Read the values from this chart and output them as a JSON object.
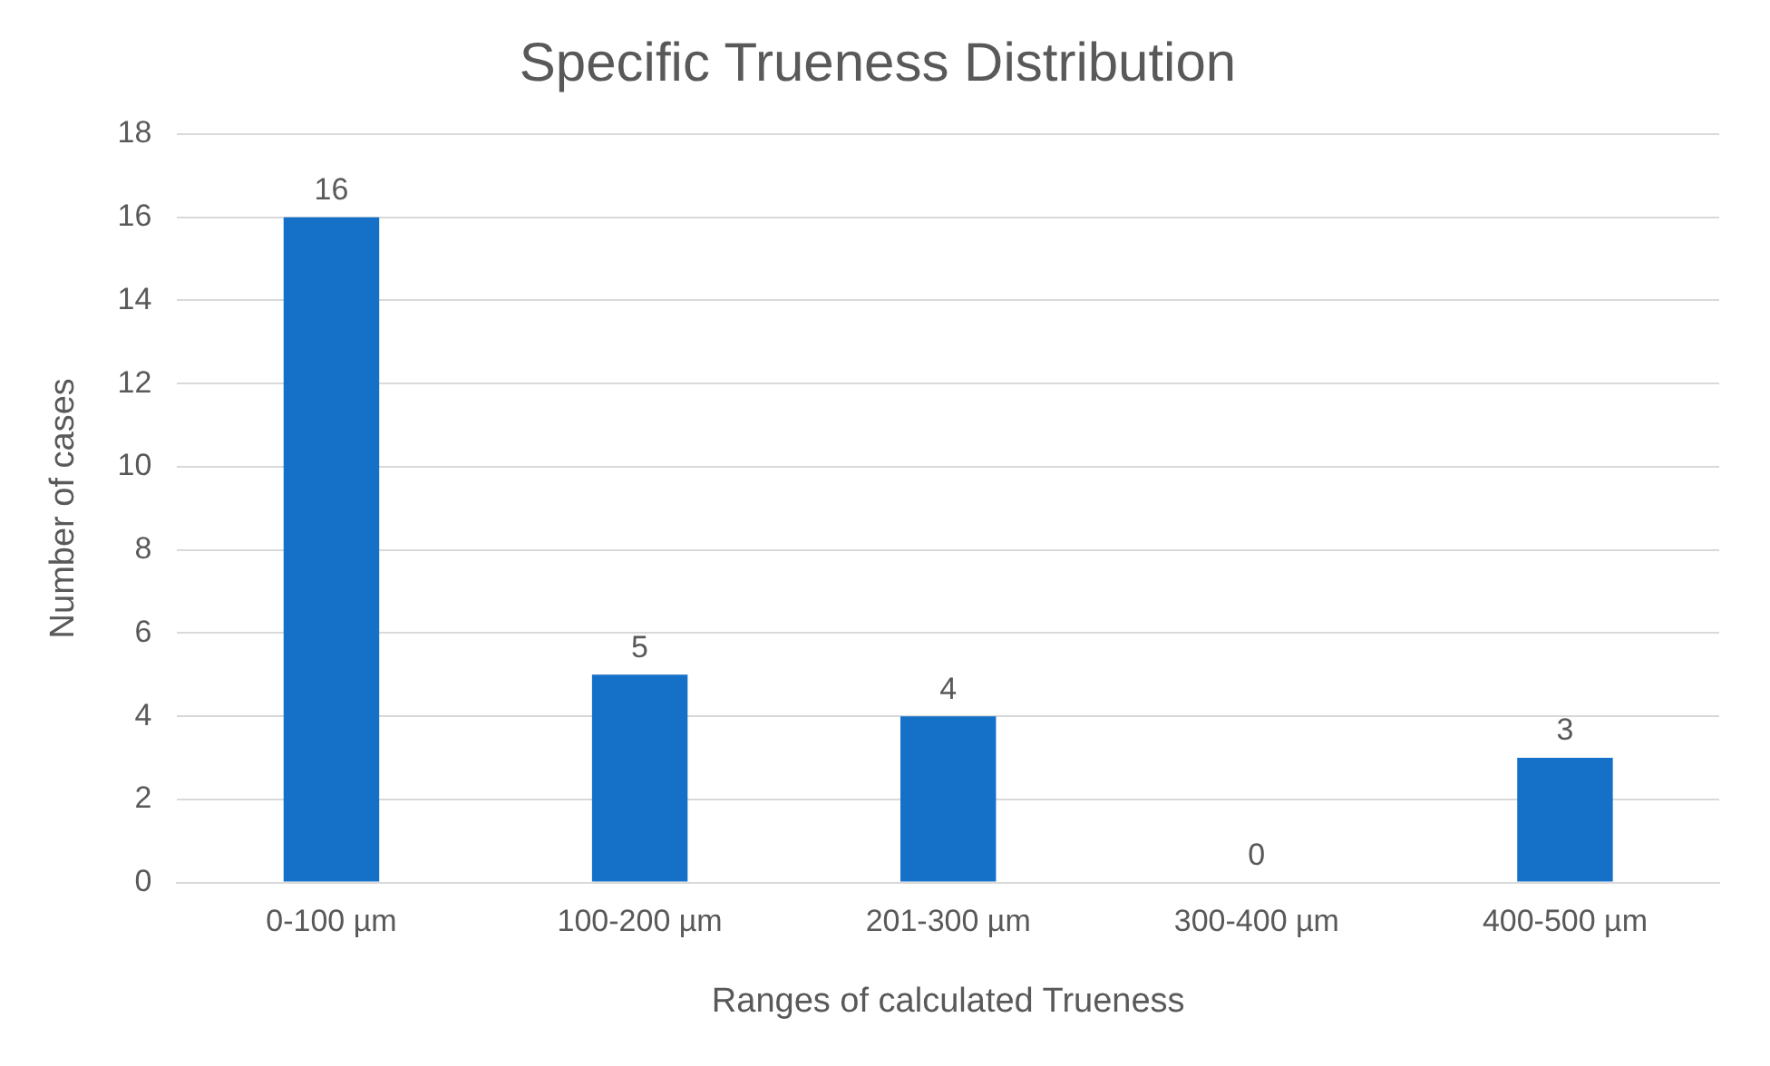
{
  "chart_data": {
    "type": "bar",
    "title": "Specific Trueness Distribution",
    "xlabel": "Ranges of calculated Trueness",
    "ylabel": "Number of cases",
    "categories": [
      "0-100 µm",
      "100-200 µm",
      "201-300 µm",
      "300-400 µm",
      "400-500 µm"
    ],
    "values": [
      16,
      5,
      4,
      0,
      3
    ],
    "color": "#1570c8",
    "ylim": [
      0,
      18
    ],
    "yticks": [
      0,
      2,
      4,
      6,
      8,
      10,
      12,
      14,
      16,
      18
    ],
    "grid": "y",
    "data_labels": true,
    "legend": false
  }
}
